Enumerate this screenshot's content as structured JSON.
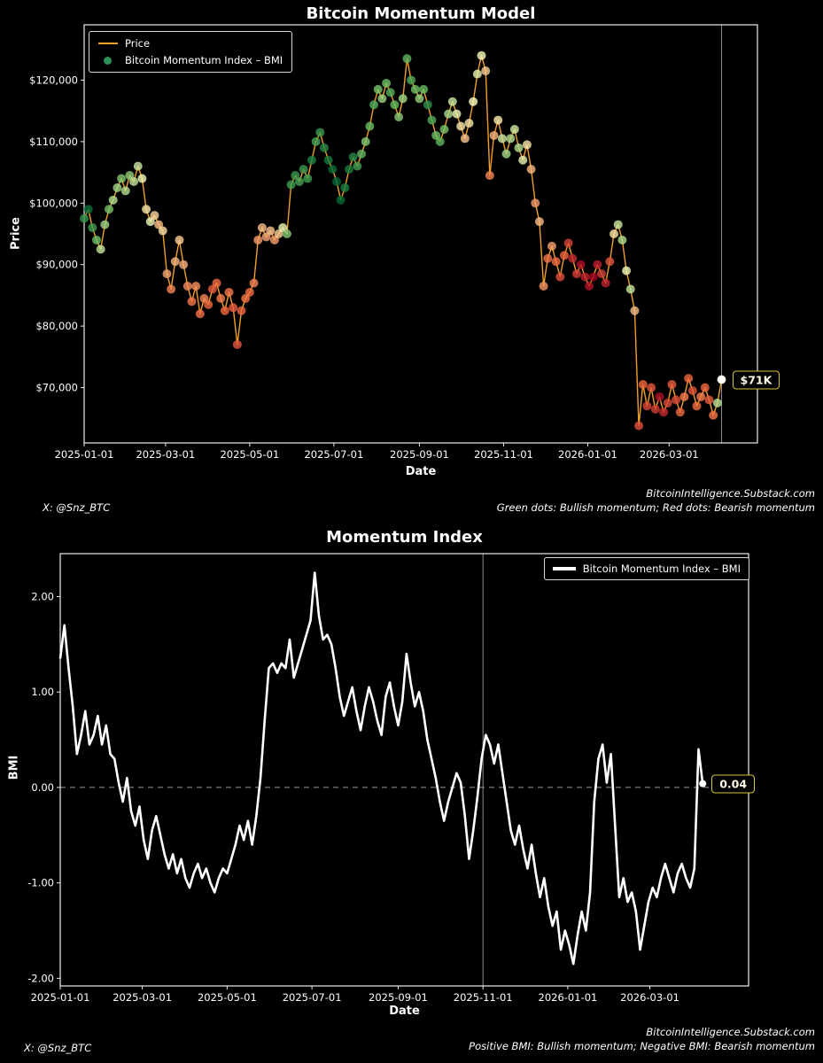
{
  "footer": {
    "handle": "X: @Snz_BTC",
    "site": "BitcoinIntelligence.Substack.com",
    "note_price": "Green dots: Bullish momentum; Red dots: Bearish momentum",
    "note_bmi": "Positive BMI: Bullish momentum; Negative BMI: Bearish momentum"
  },
  "chart_data": {
    "shared_x": {
      "start_date": "2025-01-01",
      "step_days": 3,
      "points": 155
    },
    "price_series": {
      "name": "Price",
      "units": "thousand USD",
      "values": [
        97.5,
        99.0,
        96.0,
        94.0,
        92.5,
        96.5,
        99.0,
        100.5,
        102.5,
        104.0,
        102.0,
        104.5,
        103.5,
        106.0,
        104.0,
        99.0,
        97.0,
        98.0,
        96.5,
        95.5,
        88.5,
        86.0,
        90.5,
        94.0,
        90.0,
        86.5,
        84.0,
        86.5,
        82.0,
        84.5,
        83.5,
        86.0,
        87.0,
        84.5,
        82.5,
        85.5,
        83.0,
        77.0,
        82.5,
        84.5,
        85.5,
        87.0,
        94.0,
        96.0,
        94.5,
        95.5,
        94.0,
        95.0,
        96.0,
        95.0,
        103.0,
        104.5,
        103.5,
        105.5,
        104.0,
        107.0,
        110.0,
        111.5,
        109.0,
        107.0,
        105.5,
        103.5,
        100.5,
        102.5,
        105.5,
        107.5,
        106.0,
        108.0,
        110.0,
        112.5,
        116.0,
        118.5,
        117.0,
        119.5,
        118.0,
        116.0,
        114.0,
        117.0,
        123.5,
        120.0,
        118.5,
        117.0,
        118.5,
        116.0,
        113.5,
        111.0,
        110.0,
        112.0,
        114.5,
        116.5,
        114.5,
        112.5,
        110.5,
        113.0,
        116.5,
        121.0,
        124.0,
        121.5,
        104.5,
        111.0,
        113.5,
        110.5,
        108.0,
        110.5,
        112.0,
        109.0,
        107.0,
        109.5,
        105.5,
        100.0,
        97.0,
        86.5,
        91.0,
        93.0,
        90.5,
        88.0,
        91.5,
        93.5,
        91.0,
        88.5,
        90.0,
        88.0,
        86.5,
        88.0,
        90.0,
        88.5,
        87.0,
        90.5,
        95.0,
        96.5,
        94.0,
        89.0,
        86.0,
        82.5,
        63.8,
        70.5,
        67.0,
        70.0,
        66.5,
        68.5,
        66.0,
        67.5,
        70.5,
        68.0,
        66.0,
        68.5,
        71.5,
        69.5,
        67.0,
        68.5,
        70.0,
        68.0,
        65.5,
        67.5,
        71.3
      ]
    },
    "bmi_series": {
      "name": "Bitcoin Momentum Index – BMI",
      "values": [
        1.35,
        1.7,
        1.25,
        0.85,
        0.35,
        0.55,
        0.8,
        0.45,
        0.55,
        0.75,
        0.45,
        0.65,
        0.35,
        0.3,
        0.05,
        -0.15,
        0.1,
        -0.25,
        -0.4,
        -0.2,
        -0.55,
        -0.75,
        -0.45,
        -0.3,
        -0.5,
        -0.7,
        -0.85,
        -0.7,
        -0.9,
        -0.75,
        -0.95,
        -1.05,
        -0.9,
        -0.8,
        -0.95,
        -0.85,
        -1.0,
        -1.1,
        -0.95,
        -0.85,
        -0.9,
        -0.75,
        -0.6,
        -0.4,
        -0.55,
        -0.35,
        -0.6,
        -0.3,
        0.1,
        0.7,
        1.25,
        1.3,
        1.2,
        1.3,
        1.25,
        1.55,
        1.15,
        1.3,
        1.45,
        1.6,
        1.75,
        2.25,
        1.8,
        1.55,
        1.6,
        1.5,
        1.25,
        0.95,
        0.75,
        0.9,
        1.05,
        0.8,
        0.6,
        0.85,
        1.05,
        0.9,
        0.7,
        0.55,
        0.95,
        1.1,
        0.85,
        0.65,
        0.9,
        1.4,
        1.1,
        0.85,
        1.0,
        0.8,
        0.5,
        0.3,
        0.1,
        -0.15,
        -0.35,
        -0.15,
        0.0,
        0.15,
        0.05,
        -0.3,
        -0.75,
        -0.45,
        -0.1,
        0.3,
        0.55,
        0.45,
        0.25,
        0.45,
        0.15,
        -0.15,
        -0.45,
        -0.6,
        -0.4,
        -0.65,
        -0.85,
        -0.6,
        -0.9,
        -1.15,
        -0.95,
        -1.25,
        -1.45,
        -1.3,
        -1.7,
        -1.5,
        -1.65,
        -1.85,
        -1.55,
        -1.3,
        -1.5,
        -1.1,
        -0.15,
        0.3,
        0.45,
        0.05,
        0.35,
        -0.4,
        -1.15,
        -0.95,
        -1.2,
        -1.1,
        -1.3,
        -1.7,
        -1.45,
        -1.2,
        -1.05,
        -1.15,
        -0.95,
        -0.8,
        -0.95,
        -1.1,
        -0.9,
        -0.8,
        -0.95,
        -1.05,
        -0.85,
        0.4,
        0.04
      ]
    },
    "charts": [
      {
        "type": "line+scatter",
        "title": "Bitcoin Momentum Model",
        "xlabel": "Date",
        "ylabel": "Price",
        "legend": [
          "Price",
          "Bitcoin Momentum Index – BMI"
        ],
        "legend_position": "upper-left",
        "x_tick_labels": [
          "2025-01-01",
          "2025-03-01",
          "2025-05-01",
          "2025-07-01",
          "2025-09-01",
          "2025-11-01",
          "2026-01-01",
          "2026-03-01"
        ],
        "y_tick_values": [
          70,
          80,
          90,
          100,
          110,
          120
        ],
        "y_tick_labels": [
          "$70,000",
          "$80,000",
          "$90,000",
          "$100,000",
          "$110,000",
          "$120,000"
        ],
        "ylim": [
          61,
          129
        ],
        "x_domain_days": [
          0,
          488
        ],
        "grid": false,
        "line_color": "#f0a028",
        "legend_dot_color": "#2e8f57",
        "dot_colormap": "RdYlGn",
        "dot_colormap_stops": [
          "#a50026",
          "#f46d43",
          "#ffffbf",
          "#66bd63",
          "#006837"
        ],
        "dot_color_range": [
          -1.8,
          1.8
        ],
        "vline_day": 462,
        "endpoint": {
          "label": "$71K",
          "value_k": 71.3,
          "date": "2026-04-08"
        }
      },
      {
        "type": "line",
        "title": "Momentum Index",
        "xlabel": "Date",
        "ylabel": "BMI",
        "legend": [
          "Bitcoin Momentum Index – BMI"
        ],
        "legend_position": "upper-right",
        "x_tick_labels": [
          "2025-01-01",
          "2025-03-01",
          "2025-05-01",
          "2025-07-01",
          "2025-09-01",
          "2025-11-01",
          "2026-01-01",
          "2026-03-01"
        ],
        "y_tick_values": [
          2,
          1,
          0,
          -1,
          -2
        ],
        "y_tick_labels": [
          "2.00",
          "1.00",
          "0.00",
          "-1.00",
          "-2.00"
        ],
        "ylim": [
          -2.08,
          2.45
        ],
        "x_domain_days": [
          0,
          495
        ],
        "grid": false,
        "line_color": "#ffffff",
        "zero_line": true,
        "vline_day": 304,
        "endpoint": {
          "label": "0.04",
          "value": 0.04,
          "date": "2026-04-08"
        }
      }
    ]
  }
}
